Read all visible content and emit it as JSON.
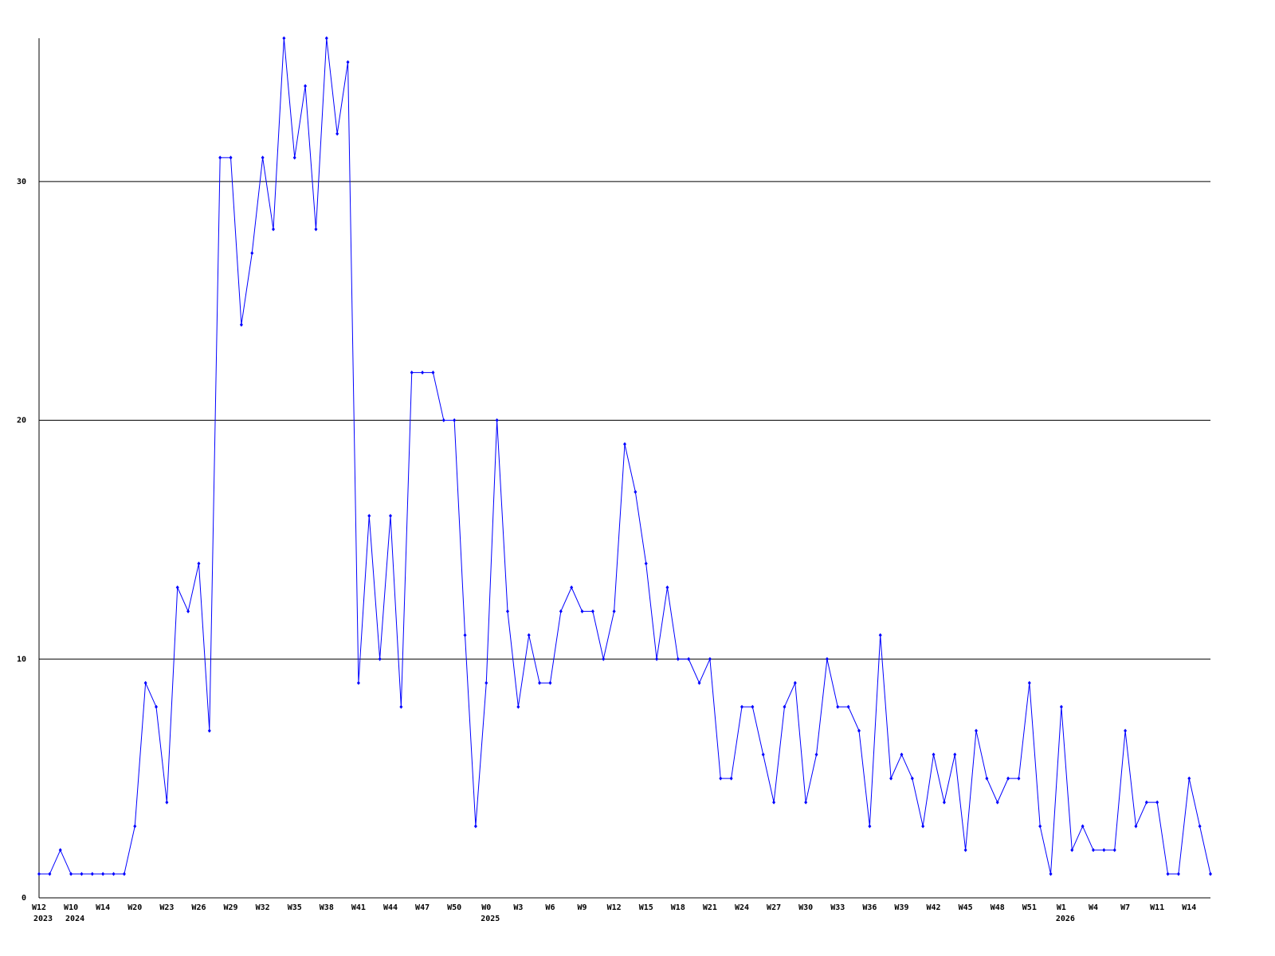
{
  "chart_data": {
    "type": "line",
    "categories": [
      "W12",
      null,
      null,
      "W10",
      null,
      null,
      "W14",
      null,
      null,
      "W20",
      null,
      null,
      "W23",
      null,
      null,
      "W26",
      null,
      null,
      "W29",
      null,
      null,
      "W32",
      null,
      null,
      "W35",
      null,
      null,
      "W38",
      null,
      null,
      "W41",
      null,
      null,
      "W44",
      null,
      null,
      "W47",
      null,
      null,
      "W50",
      null,
      null,
      "W0",
      null,
      null,
      "W3",
      null,
      null,
      "W6",
      null,
      null,
      "W9",
      null,
      null,
      "W12",
      null,
      null,
      "W15",
      null,
      null,
      "W18",
      null,
      null,
      "W21",
      null,
      null,
      "W24",
      null,
      null,
      "W27",
      null,
      null,
      "W30",
      null,
      null,
      "W33",
      null,
      null,
      "W36",
      null,
      null,
      "W39",
      null,
      null,
      "W42",
      null,
      null,
      "W45",
      null,
      null,
      "W48",
      null,
      null,
      "W51",
      null,
      null,
      "W1",
      null,
      null,
      "W4",
      null,
      null,
      "W7",
      null,
      null,
      "W11",
      null,
      null,
      "W14",
      null,
      null
    ],
    "year_labels": [
      "2023",
      null,
      null,
      "2024",
      null,
      null,
      null,
      null,
      null,
      null,
      null,
      null,
      null,
      null,
      null,
      null,
      null,
      null,
      null,
      null,
      null,
      null,
      null,
      null,
      null,
      null,
      null,
      null,
      null,
      null,
      null,
      null,
      null,
      null,
      null,
      null,
      null,
      null,
      null,
      null,
      null,
      null,
      "2025",
      null,
      null,
      null,
      null,
      null,
      null,
      null,
      null,
      null,
      null,
      null,
      null,
      null,
      null,
      null,
      null,
      null,
      null,
      null,
      null,
      null,
      null,
      null,
      null,
      null,
      null,
      null,
      null,
      null,
      null,
      null,
      null,
      null,
      null,
      null,
      null,
      null,
      null,
      null,
      null,
      null,
      null,
      null,
      null,
      null,
      null,
      null,
      null,
      null,
      null,
      null,
      null,
      null,
      "2026",
      null,
      null,
      null,
      null,
      null,
      null,
      null,
      null,
      null,
      null,
      null,
      null,
      null,
      null
    ],
    "values": [
      1,
      1,
      2,
      1,
      1,
      1,
      1,
      1,
      1,
      3,
      9,
      8,
      4,
      13,
      12,
      14,
      7,
      31,
      31,
      24,
      27,
      31,
      28,
      36,
      31,
      34,
      28,
      36,
      32,
      35,
      9,
      16,
      10,
      16,
      8,
      22,
      22,
      22,
      20,
      20,
      11,
      3,
      9,
      20,
      12,
      8,
      11,
      9,
      9,
      12,
      13,
      12,
      12,
      10,
      12,
      19,
      17,
      14,
      10,
      13,
      10,
      10,
      9,
      10,
      5,
      5,
      8,
      8,
      6,
      4,
      8,
      9,
      4,
      6,
      10,
      8,
      8,
      7,
      3,
      11,
      5,
      6,
      5,
      3,
      6,
      4,
      6,
      2,
      7,
      5,
      4,
      5,
      5,
      9,
      3,
      1,
      8,
      2,
      3,
      2,
      2,
      2,
      7,
      3,
      4,
      4,
      1,
      1,
      5,
      3,
      1
    ],
    "color": "#0000ff",
    "ylim": [
      0,
      36
    ],
    "yticks": [
      0,
      10,
      20,
      30
    ],
    "grid": true
  }
}
